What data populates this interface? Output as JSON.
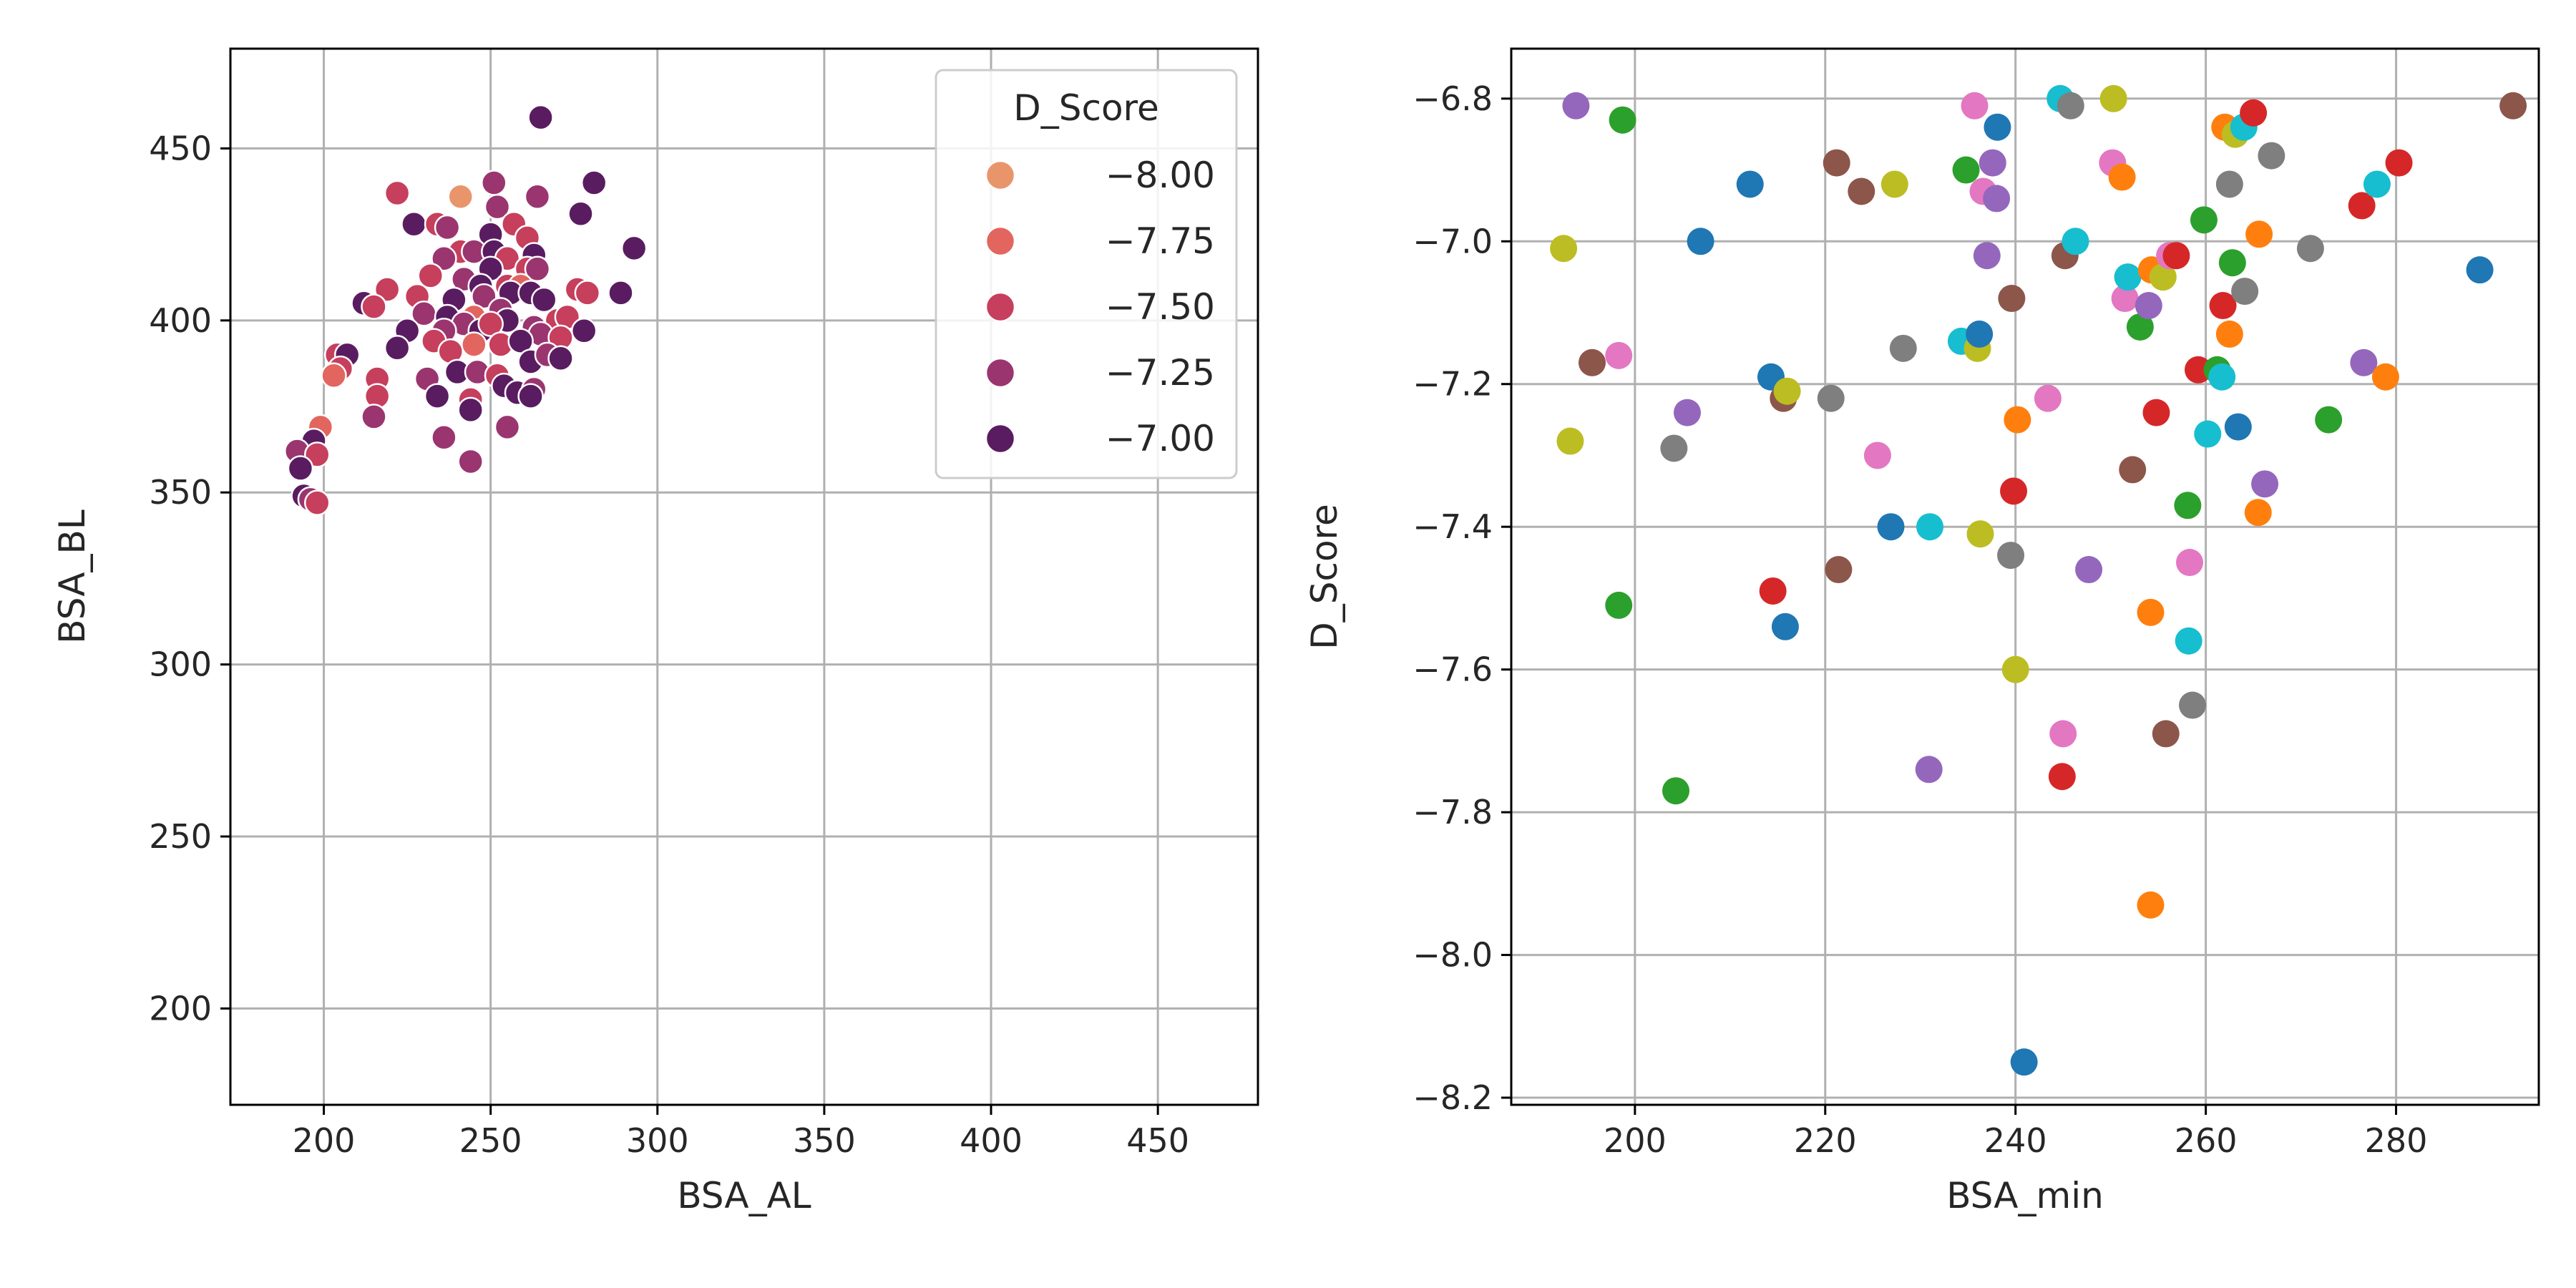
{
  "chart_data": [
    {
      "type": "scatter",
      "xlabel": "BSA_AL",
      "ylabel": "BSA_BL",
      "xlim": [
        172,
        480
      ],
      "ylim": [
        172,
        479
      ],
      "xticks": [
        200,
        250,
        300,
        350,
        400,
        450
      ],
      "yticks": [
        200,
        250,
        300,
        350,
        400,
        450
      ],
      "grid": true,
      "hue": "D_Score",
      "legend": {
        "title": "D_Score",
        "placement": "top-right",
        "entries": [
          {
            "label": "−8.00",
            "color": "#e9956c"
          },
          {
            "label": "−7.75",
            "color": "#e2665f"
          },
          {
            "label": "−7.50",
            "color": "#c63f5c"
          },
          {
            "label": "−7.25",
            "color": "#9a3570"
          },
          {
            "label": "−7.00",
            "color": "#5a1c61"
          }
        ]
      },
      "points": [
        [
          265,
          459,
          -7.0
        ],
        [
          251,
          440,
          -7.2
        ],
        [
          281,
          440,
          -7.1
        ],
        [
          222,
          437,
          -7.6
        ],
        [
          264,
          436,
          -7.2
        ],
        [
          241,
          436,
          -8.0
        ],
        [
          252,
          433,
          -7.3
        ],
        [
          277,
          431,
          -7.1
        ],
        [
          227,
          428,
          -7.1
        ],
        [
          234,
          428,
          -7.6
        ],
        [
          257,
          428,
          -7.5
        ],
        [
          237,
          427,
          -7.3
        ],
        [
          250,
          425,
          -7.0
        ],
        [
          261,
          424,
          -7.6
        ],
        [
          293,
          421,
          -7.0
        ],
        [
          241,
          420,
          -7.4
        ],
        [
          245,
          420,
          -7.2
        ],
        [
          251,
          420,
          -7.1
        ],
        [
          255,
          418,
          -7.6
        ],
        [
          263,
          419,
          -7.0
        ],
        [
          236,
          418,
          -7.2
        ],
        [
          250,
          415,
          -7.0
        ],
        [
          261,
          415,
          -7.4
        ],
        [
          264,
          415,
          -7.3
        ],
        [
          232,
          413,
          -7.4
        ],
        [
          242,
          412,
          -7.2
        ],
        [
          247,
          410,
          -7.1
        ],
        [
          255,
          410,
          -7.4
        ],
        [
          219,
          409,
          -7.5
        ],
        [
          228,
          407,
          -7.4
        ],
        [
          259,
          410,
          -7.7
        ],
        [
          276,
          409,
          -7.5
        ],
        [
          289,
          408,
          -7.1
        ],
        [
          212,
          405,
          -7.0
        ],
        [
          239,
          406,
          -7.1
        ],
        [
          248,
          407,
          -7.3
        ],
        [
          256,
          408,
          -7.0
        ],
        [
          262,
          408,
          -7.1
        ],
        [
          266,
          406,
          -7.0
        ],
        [
          279,
          408,
          -7.6
        ],
        [
          215,
          404,
          -7.6
        ],
        [
          253,
          403,
          -7.3
        ],
        [
          230,
          402,
          -7.2
        ],
        [
          237,
          401,
          -7.0
        ],
        [
          245,
          401,
          -7.7
        ],
        [
          255,
          400,
          -7.1
        ],
        [
          270,
          400,
          -7.4
        ],
        [
          273,
          401,
          -7.5
        ],
        [
          242,
          399,
          -7.3
        ],
        [
          247,
          397,
          -7.1
        ],
        [
          263,
          398,
          -7.2
        ],
        [
          278,
          397,
          -7.0
        ],
        [
          225,
          397,
          -7.0
        ],
        [
          236,
          397,
          -7.2
        ],
        [
          250,
          399,
          -7.4
        ],
        [
          265,
          396,
          -7.3
        ],
        [
          233,
          394,
          -7.4
        ],
        [
          245,
          393,
          -7.7
        ],
        [
          253,
          393,
          -7.5
        ],
        [
          259,
          394,
          -7.1
        ],
        [
          271,
          395,
          -7.6
        ],
        [
          222,
          392,
          -7.0
        ],
        [
          238,
          391,
          -7.4
        ],
        [
          204,
          390,
          -7.6
        ],
        [
          207,
          390,
          -7.0
        ],
        [
          262,
          388,
          -7.1
        ],
        [
          267,
          390,
          -7.3
        ],
        [
          271,
          389,
          -7.0
        ],
        [
          205,
          386,
          -7.5
        ],
        [
          240,
          385,
          -7.1
        ],
        [
          246,
          385,
          -7.3
        ],
        [
          252,
          384,
          -7.4
        ],
        [
          203,
          384,
          -7.7
        ],
        [
          231,
          383,
          -7.3
        ],
        [
          216,
          383,
          -7.5
        ],
        [
          254,
          381,
          -7.0
        ],
        [
          258,
          379,
          -7.1
        ],
        [
          263,
          380,
          -7.3
        ],
        [
          234,
          378,
          -7.1
        ],
        [
          244,
          377,
          -7.5
        ],
        [
          216,
          378,
          -7.6
        ],
        [
          262,
          378,
          -7.1
        ],
        [
          244,
          374,
          -7.0
        ],
        [
          236,
          366,
          -7.3
        ],
        [
          215,
          372,
          -7.3
        ],
        [
          199,
          369,
          -7.7
        ],
        [
          255,
          369,
          -7.3
        ],
        [
          197,
          365,
          -7.0
        ],
        [
          192,
          362,
          -7.3
        ],
        [
          198,
          361,
          -7.5
        ],
        [
          193,
          357,
          -7.1
        ],
        [
          244,
          359,
          -7.3
        ],
        [
          194,
          349,
          -7.1
        ],
        [
          196,
          348,
          -7.3
        ],
        [
          198,
          347,
          -7.4
        ]
      ]
    },
    {
      "type": "scatter",
      "xlabel": "BSA_min",
      "ylabel": "D_Score",
      "xlim": [
        187,
        295
      ],
      "ylim": [
        -8.21,
        -6.73
      ],
      "xticks": [
        200,
        220,
        240,
        260,
        280
      ],
      "yticks": [
        -8.2,
        -8.0,
        -7.8,
        -7.6,
        -7.4,
        -7.2,
        -7.0,
        -6.8
      ],
      "ytick_labels": [
        "−8.2",
        "−8.0",
        "−7.8",
        "−7.6",
        "−7.4",
        "−7.2",
        "−7.0",
        "−6.8"
      ],
      "grid": true,
      "palette": [
        "#1f77b4",
        "#ff7f0e",
        "#2ca02c",
        "#d62728",
        "#9467bd",
        "#8c564b",
        "#e377c2",
        "#7f7f7f",
        "#bcbd22",
        "#17becf"
      ],
      "points": [
        [
          192.5,
          -7.01,
          8
        ],
        [
          193.2,
          -7.28,
          8
        ],
        [
          193.8,
          -6.81,
          4
        ],
        [
          195.5,
          -7.17,
          5
        ],
        [
          198.3,
          -7.16,
          6
        ],
        [
          198.3,
          -7.51,
          2
        ],
        [
          198.7,
          -6.83,
          2
        ],
        [
          204.1,
          -7.29,
          7
        ],
        [
          204.3,
          -7.77,
          2
        ],
        [
          205.5,
          -7.24,
          4
        ],
        [
          206.9,
          -7.0,
          0
        ],
        [
          212.1,
          -6.92,
          0
        ],
        [
          214.3,
          -7.19,
          0
        ],
        [
          214.5,
          -7.49,
          3
        ],
        [
          215.6,
          -7.22,
          5
        ],
        [
          215.8,
          -7.54,
          0
        ],
        [
          216.0,
          -7.21,
          8
        ],
        [
          220.6,
          -7.22,
          7
        ],
        [
          221.2,
          -6.89,
          5
        ],
        [
          221.4,
          -7.46,
          5
        ],
        [
          223.8,
          -6.93,
          5
        ],
        [
          225.5,
          -7.3,
          6
        ],
        [
          226.9,
          -7.4,
          0
        ],
        [
          227.3,
          -6.92,
          8
        ],
        [
          228.2,
          -7.15,
          7
        ],
        [
          230.9,
          -7.74,
          4
        ],
        [
          231.0,
          -7.4,
          9
        ],
        [
          234.3,
          -7.14,
          9
        ],
        [
          234.8,
          -6.9,
          2
        ],
        [
          235.7,
          -6.81,
          6
        ],
        [
          236.0,
          -7.15,
          8
        ],
        [
          236.2,
          -7.13,
          0
        ],
        [
          236.3,
          -7.41,
          8
        ],
        [
          236.6,
          -6.93,
          6
        ],
        [
          237.0,
          -7.02,
          4
        ],
        [
          237.6,
          -6.89,
          4
        ],
        [
          238.0,
          -6.94,
          4
        ],
        [
          238.1,
          -6.84,
          0
        ],
        [
          239.5,
          -7.44,
          7
        ],
        [
          239.6,
          -7.08,
          5
        ],
        [
          239.8,
          -7.35,
          3
        ],
        [
          240.0,
          -7.6,
          8
        ],
        [
          240.2,
          -7.25,
          1
        ],
        [
          240.9,
          -8.15,
          0
        ],
        [
          243.4,
          -7.22,
          6
        ],
        [
          244.7,
          -6.8,
          9
        ],
        [
          244.9,
          -7.75,
          3
        ],
        [
          245.0,
          -7.69,
          6
        ],
        [
          245.2,
          -7.02,
          5
        ],
        [
          245.8,
          -6.81,
          7
        ],
        [
          246.3,
          -7.0,
          9
        ],
        [
          247.7,
          -7.46,
          4
        ],
        [
          250.2,
          -6.89,
          6
        ],
        [
          250.3,
          -6.8,
          8
        ],
        [
          251.2,
          -6.91,
          1
        ],
        [
          251.5,
          -7.08,
          6
        ],
        [
          251.8,
          -7.05,
          9
        ],
        [
          252.3,
          -7.32,
          5
        ],
        [
          253.1,
          -7.12,
          2
        ],
        [
          254.0,
          -7.09,
          4
        ],
        [
          254.2,
          -7.93,
          1
        ],
        [
          254.2,
          -7.52,
          1
        ],
        [
          254.3,
          -7.04,
          1
        ],
        [
          254.8,
          -7.24,
          3
        ],
        [
          255.5,
          -7.05,
          8
        ],
        [
          255.8,
          -7.69,
          5
        ],
        [
          256.2,
          -7.02,
          6
        ],
        [
          256.9,
          -7.02,
          3
        ],
        [
          258.1,
          -7.37,
          2
        ],
        [
          258.2,
          -7.56,
          9
        ],
        [
          258.3,
          -7.45,
          6
        ],
        [
          258.6,
          -7.65,
          7
        ],
        [
          259.2,
          -7.18,
          3
        ],
        [
          259.8,
          -6.97,
          2
        ],
        [
          260.2,
          -7.27,
          9
        ],
        [
          261.2,
          -7.18,
          2
        ],
        [
          261.7,
          -7.19,
          9
        ],
        [
          261.8,
          -7.09,
          3
        ],
        [
          262.0,
          -6.84,
          1
        ],
        [
          262.5,
          -6.92,
          7
        ],
        [
          262.5,
          -7.13,
          1
        ],
        [
          262.8,
          -7.03,
          2
        ],
        [
          263.1,
          -6.85,
          8
        ],
        [
          263.4,
          -7.26,
          0
        ],
        [
          264.0,
          -6.84,
          9
        ],
        [
          264.1,
          -7.07,
          7
        ],
        [
          265.0,
          -6.82,
          3
        ],
        [
          265.5,
          -7.38,
          1
        ],
        [
          265.6,
          -6.99,
          1
        ],
        [
          266.2,
          -7.34,
          4
        ],
        [
          266.9,
          -6.88,
          7
        ],
        [
          271.0,
          -7.01,
          7
        ],
        [
          272.9,
          -7.25,
          2
        ],
        [
          276.4,
          -6.95,
          3
        ],
        [
          276.6,
          -7.17,
          4
        ],
        [
          278.0,
          -6.92,
          9
        ],
        [
          278.9,
          -7.19,
          1
        ],
        [
          280.3,
          -6.89,
          3
        ],
        [
          288.8,
          -7.04,
          0
        ],
        [
          292.3,
          -6.81,
          5
        ]
      ]
    }
  ]
}
